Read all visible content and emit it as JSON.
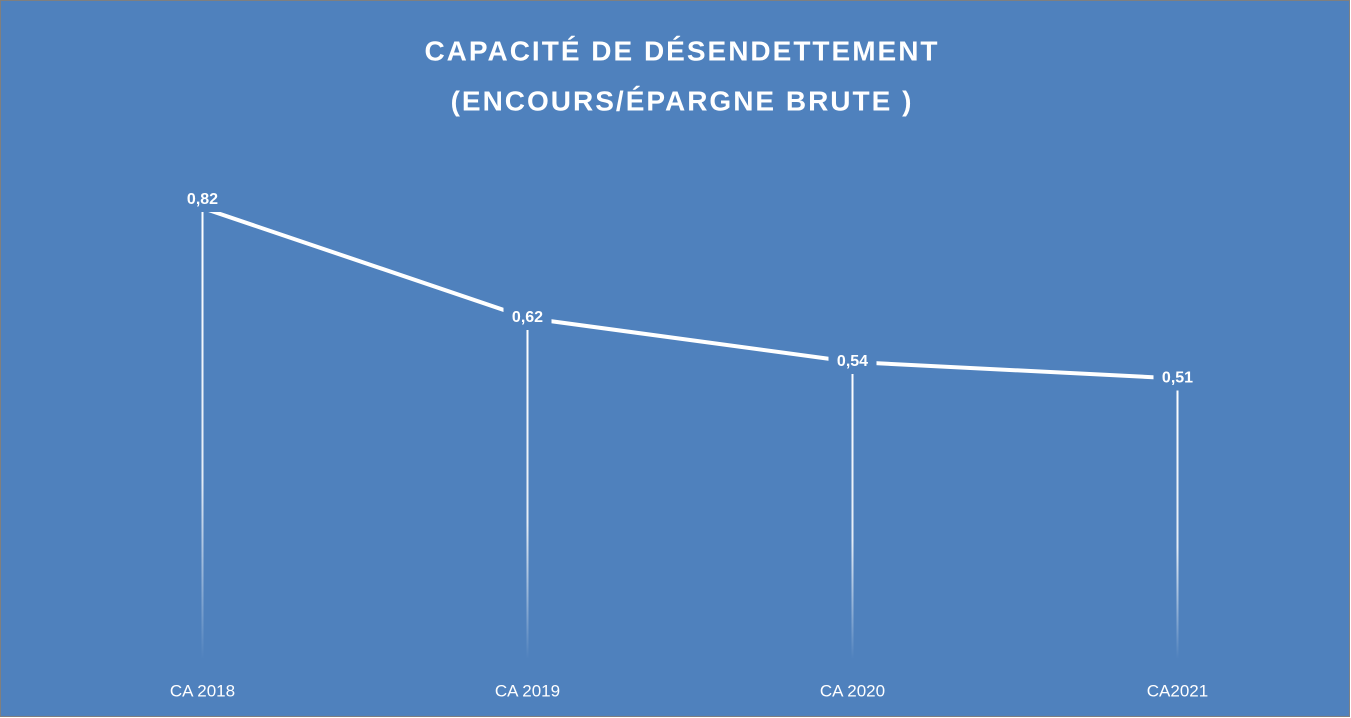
{
  "chart_data": {
    "type": "line",
    "title": [
      "CAPACITÉ DE DÉSENDETTEMENT",
      "(ENCOURS/ÉPARGNE BRUTE )"
    ],
    "categories": [
      "CA 2018",
      "CA 2019",
      "CA 2020",
      "CA2021"
    ],
    "values": [
      0.82,
      0.62,
      0.54,
      0.51
    ],
    "value_labels": [
      "0,82",
      "0,62",
      "0,54",
      "0,51"
    ],
    "color": "#ffffff",
    "ylim": [
      0,
      0.9
    ]
  }
}
